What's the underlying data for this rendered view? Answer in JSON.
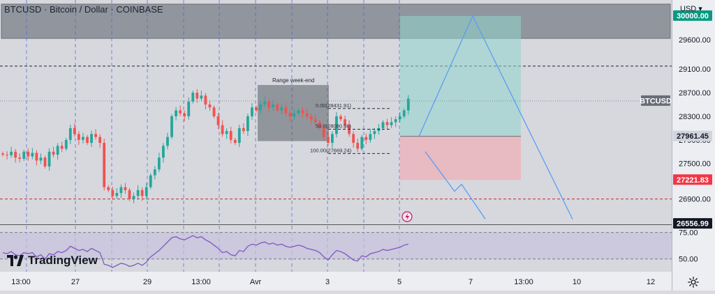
{
  "symbol": {
    "title": "BTCUSD · Bitcoin / Dollar · COINBASE"
  },
  "currency": "USD",
  "branding": "TradingView",
  "price_labels": {
    "btcusd": "BTCUSD",
    "target": "30000.00",
    "entry": "27961.45",
    "stop": "27221.83",
    "low": "26556.99"
  },
  "annotations": {
    "range_label": "Range week-end",
    "fib_0": "0.00(28431.91)",
    "fib_50": "50.0(28080.56)",
    "fib_100": "100.00(27669.24)"
  },
  "colors": {
    "bull": "#26a69a",
    "bear": "#ef5350",
    "rsi": "#7e57c2",
    "target_badge": "#089981",
    "stop_badge": "#f23645",
    "projection": "#5b9cf6"
  },
  "chart_data": {
    "type": "candlestick",
    "title": "BTCUSD · Bitcoin / Dollar · COINBASE",
    "y_ticks": [
      30000,
      29600,
      29100,
      28700,
      28300,
      27900,
      27500,
      26900
    ],
    "y_tick_labels": [
      "29600.00",
      "29100.00",
      "28700.00",
      "28300.00",
      "27900.00",
      "27500.00",
      "26900.00"
    ],
    "ylim": [
      26470,
      30270
    ],
    "x_tick_labels": [
      "13:00",
      "27",
      "29",
      "13:00",
      "Avr",
      "3",
      "5",
      "7",
      "13:00",
      "10",
      "12"
    ],
    "price_series": [
      27650,
      27640,
      27700,
      27600,
      27580,
      27700,
      27620,
      27680,
      27550,
      27600,
      27450,
      27700,
      27650,
      27800,
      27750,
      27900,
      28100,
      28000,
      27900,
      27950,
      27850,
      28000,
      27950,
      27850,
      27100,
      27050,
      26950,
      27000,
      27100,
      27050,
      26900,
      26950,
      27050,
      26950,
      27100,
      27300,
      27400,
      27600,
      27800,
      27950,
      28300,
      28400,
      28350,
      28300,
      28550,
      28700,
      28600,
      28650,
      28500,
      28450,
      28300,
      28150,
      28000,
      28050,
      27900,
      27850,
      28100,
      28050,
      28300,
      28450,
      28400,
      28500,
      28550,
      28450,
      28500,
      28400,
      28450,
      28350,
      28300,
      28350,
      28400,
      28350,
      28300,
      28250,
      28200,
      28100,
      27950,
      27850,
      28000,
      28300,
      28250,
      28150,
      28000,
      27850,
      27750,
      27950,
      27900,
      28000,
      28050,
      28100,
      28200,
      28150,
      28200,
      28250,
      28300,
      28400,
      28600
    ],
    "rsi_series": [
      56,
      55,
      57,
      54,
      53,
      56,
      55,
      56,
      52,
      54,
      50,
      55,
      54,
      57,
      56,
      58,
      62,
      60,
      58,
      59,
      57,
      60,
      58,
      56,
      45,
      44,
      42,
      44,
      46,
      45,
      43,
      44,
      46,
      44,
      47,
      52,
      55,
      58,
      62,
      66,
      70,
      71,
      69,
      68,
      70,
      72,
      70,
      71,
      68,
      66,
      63,
      60,
      56,
      57,
      54,
      53,
      58,
      57,
      62,
      64,
      63,
      65,
      66,
      64,
      65,
      63,
      64,
      62,
      61,
      62,
      63,
      62,
      60,
      59,
      58,
      56,
      52,
      49,
      54,
      58,
      57,
      55,
      52,
      49,
      48,
      53,
      52,
      55,
      56,
      57,
      59,
      58,
      59,
      60,
      61,
      63,
      64
    ],
    "rsi_levels": [
      75,
      50
    ],
    "rsi_level_labels": [
      "75.00",
      "50.00"
    ],
    "rsi_ylim": [
      38,
      82
    ],
    "levels": {
      "resistance_dashed": 29150,
      "support_dashed": 26900,
      "last_price": 28560
    },
    "position": {
      "entry": 27961.45,
      "target": 30000.0,
      "stop": 27221.83
    },
    "weekend_range": {
      "high": 28830,
      "low": 27880
    },
    "fibonacci": {
      "level_0": 28431.91,
      "level_50": 28080.56,
      "level_100": 27669.24
    },
    "projection": [
      [
        0,
        27960
      ],
      [
        1,
        30000
      ],
      [
        2,
        26556.99
      ]
    ],
    "supply_zone": [
      29620,
      30200
    ]
  }
}
